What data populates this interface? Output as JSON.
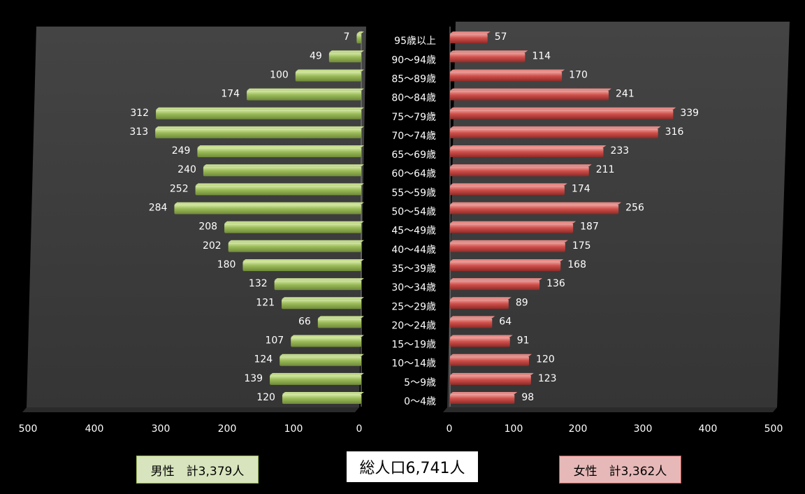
{
  "chart_data": {
    "type": "bar",
    "orientation": "horizontal",
    "layout": "population-pyramid",
    "categories": [
      "0〜4歳",
      "5〜9歳",
      "10〜14歳",
      "15〜19歳",
      "20〜24歳",
      "25〜29歳",
      "30〜34歳",
      "35〜39歳",
      "40〜44歳",
      "45〜49歳",
      "50〜54歳",
      "55〜59歳",
      "60〜64歳",
      "65〜69歳",
      "70〜74歳",
      "75〜79歳",
      "80〜84歳",
      "85〜89歳",
      "90〜94歳",
      "95歳以上"
    ],
    "series": [
      {
        "values": [
          120,
          139,
          124,
          107,
          66,
          121,
          132,
          180,
          202,
          208,
          284,
          252,
          240,
          249,
          313,
          312,
          174,
          100,
          49,
          7
        ],
        "color": "#9bbb59"
      },
      {
        "values": [
          98,
          123,
          120,
          91,
          64,
          89,
          136,
          168,
          175,
          187,
          256,
          174,
          211,
          233,
          316,
          339,
          241,
          170,
          114,
          57
        ],
        "color": "#c0504d"
      }
    ],
    "male_axis": {
      "range": [
        500,
        0
      ],
      "ticks": [
        "500",
        "400",
        "300",
        "200",
        "100",
        "0"
      ]
    },
    "female_axis": {
      "range": [
        0,
        500
      ],
      "ticks": [
        "0",
        "100",
        "200",
        "300",
        "400",
        "500"
      ]
    }
  },
  "legend": {
    "male_label": "男性　計3,379人",
    "total_label": "総人口6,741人",
    "female_label": "女性　計3,362人"
  },
  "colors": {
    "background": "#000000",
    "panel": "#3a3a3a",
    "male_bar": "#9bbb59",
    "female_bar": "#c0504d",
    "male_box": "#d7e4bd",
    "female_box": "#e6b9b8"
  }
}
